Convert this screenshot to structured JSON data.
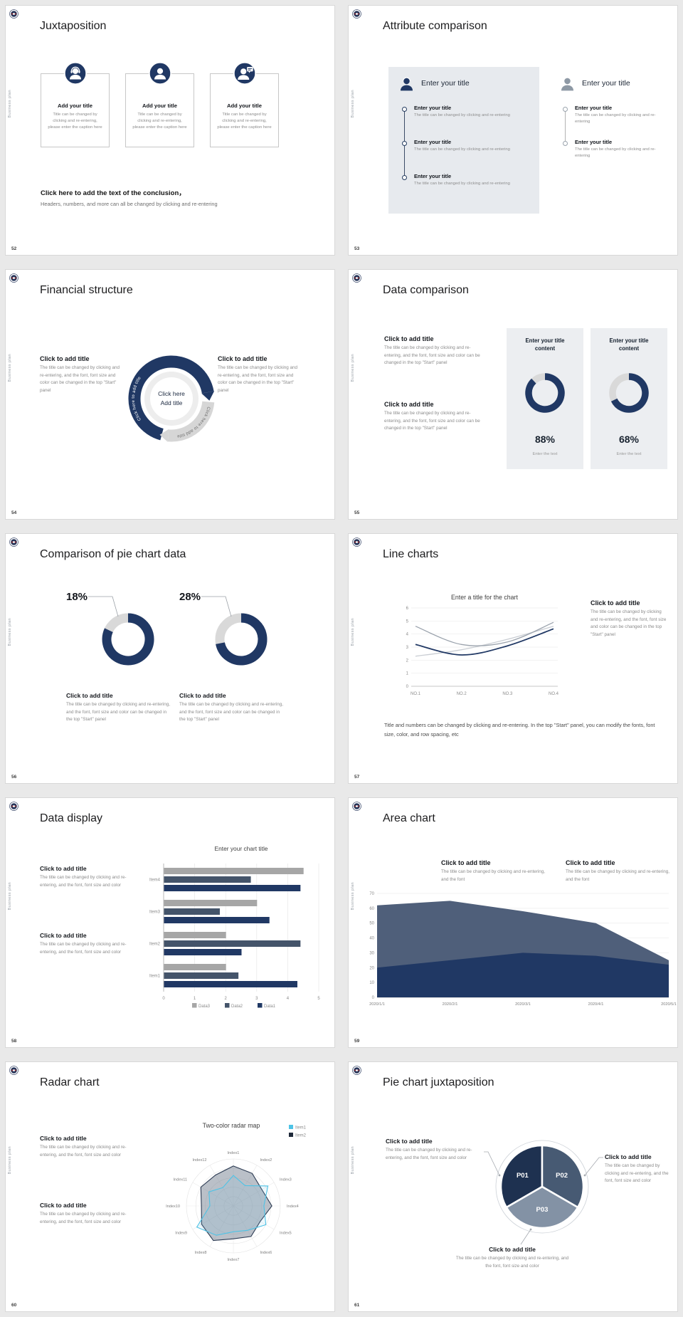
{
  "page": {
    "background": "#e9e9e9"
  },
  "branding": {
    "sidebar_text": "Business plan",
    "logo": "school-emblem-logo"
  },
  "colors": {
    "navy": "#203864",
    "slate": "#44546a",
    "blue_gray": "#8496b0",
    "light_gray": "#d9d9d9",
    "mid_gray": "#a6a6a6",
    "panel_gray": "#e7eaee",
    "cyan": "#4ec3e6",
    "area_upper": "#4f5f7a"
  },
  "slides": {
    "s52": {
      "number": "52",
      "title": "Juxtaposition",
      "cards": [
        {
          "icon": "support-agent-icon",
          "title": "Add your title",
          "caption": "Title can be changed by clicking and re-entering, please enter the caption here"
        },
        {
          "icon": "person-icon",
          "title": "Add your title",
          "caption": "Title can be changed by clicking and re-entering, please enter the caption here"
        },
        {
          "icon": "person-chat-icon",
          "title": "Add your title",
          "caption": "Title can be changed by clicking and re-entering, please enter the caption here"
        }
      ],
      "conclusion_title": "Click here to add the text of the conclusion，",
      "conclusion_text": "Headers, numbers, and more can all be changed by clicking and re-entering"
    },
    "s53": {
      "number": "53",
      "title": "Attribute comparison",
      "panels": [
        {
          "heading": "Enter your title",
          "items": [
            {
              "title": "Enter your title",
              "caption": "The title can be changed by clicking and re-entering"
            },
            {
              "title": "Enter your title",
              "caption": "The title can be changed by clicking and re-entering"
            },
            {
              "title": "Enter your title",
              "caption": "The title can be changed by clicking and re-entering"
            }
          ]
        },
        {
          "heading": "Enter your title",
          "items": [
            {
              "title": "Enter your title",
              "caption": "The title can be changed by clicking and re-entering"
            },
            {
              "title": "Enter your title",
              "caption": "The title can be changed by clicking and re-entering"
            }
          ]
        }
      ]
    },
    "s54": {
      "number": "54",
      "title": "Financial structure",
      "left_block": {
        "title": "Click to add title",
        "text": "The title can be changed by clicking and re-entering, and the font, font size and color can be changed in the top \"Start\" panel"
      },
      "right_block": {
        "title": "Click to add title",
        "text": "The title can be changed by clicking and re-entering, and the font, font size and color can be changed in the top \"Start\" panel"
      },
      "center": {
        "line1": "Click here",
        "line2": "Add title"
      },
      "arc_labels": {
        "dark": "Click here to add title",
        "gray": "Click here to add title"
      }
    },
    "s55": {
      "number": "55",
      "title": "Data comparison",
      "blocks": [
        {
          "title": "Click to add title",
          "text": "The title can be changed by clicking and re-entering, and the font, font size and color can be changed in the top \"Start\" panel"
        },
        {
          "title": "Click to add title",
          "text": "The title can be changed by clicking and re-entering, and the font, font size and color can be changed in the top \"Start\" panel"
        }
      ],
      "cards": [
        {
          "heading": "Enter your title content",
          "percent": "88%",
          "dark_pct": 88,
          "caption": "Enter the text"
        },
        {
          "heading": "Enter your title content",
          "percent": "68%",
          "dark_pct": 68,
          "caption": "Enter the text"
        }
      ]
    },
    "s56": {
      "number": "56",
      "title": "Comparison of pie chart data",
      "donuts": [
        {
          "label": "18%",
          "gray_pct": 18,
          "block_title": "Click to add title",
          "block_text": "The title can be changed by clicking and re-entering, and the font, font size and color can be changed in the top \"Start\" panel"
        },
        {
          "label": "28%",
          "gray_pct": 28,
          "block_title": "Click to add title",
          "block_text": "The title can be changed by clicking and re-entering, and the font, font size and color can be changed in the top \"Start\" panel"
        }
      ]
    },
    "s57": {
      "number": "57",
      "title": "Line charts",
      "chart": {
        "type": "line",
        "title": "Enter a title for the chart",
        "x_labels": [
          "NO.1",
          "NO.2",
          "NO.3",
          "NO.4"
        ],
        "y_ticks": [
          0,
          1,
          2,
          3,
          4,
          5,
          6
        ],
        "ylim": [
          0,
          6
        ],
        "series": [
          {
            "name": "series-dark",
            "color": "#203864",
            "values": [
              3.2,
              2.4,
              3.1,
              4.4
            ]
          },
          {
            "name": "series-gray",
            "color": "#9aa2ac",
            "values": [
              4.6,
              3.2,
              3.4,
              4.9
            ]
          },
          {
            "name": "series-light",
            "color": "#c9cdd3",
            "values": [
              2.3,
              2.8,
              3.6,
              4.6
            ]
          }
        ]
      },
      "side_block": {
        "title": "Click to add title",
        "text": "The title can be changed by clicking and re-entering, and the font, font size and color can be changed in the top \"Start\" panel"
      },
      "footer": "Title and numbers can be changed by clicking and re-entering. In the top \"Start\" panel, you can modify the fonts, font size, color, and row spacing, etc"
    },
    "s58": {
      "number": "58",
      "title": "Data display",
      "blocks": [
        {
          "title": "Click to add title",
          "text": "The title can be changed by clicking and re-entering, and the font, font size and color"
        },
        {
          "title": "Click to add title",
          "text": "The title can be changed by clicking and re-entering, and the font, font size and color"
        }
      ],
      "chart": {
        "type": "bar",
        "title": "Enter your chart title",
        "categories": [
          "Item1",
          "Item2",
          "Item3",
          "Item4"
        ],
        "x_ticks": [
          0,
          1,
          2,
          3,
          4,
          5
        ],
        "xlim": [
          0,
          5
        ],
        "legend_position": "bottom",
        "series": [
          {
            "name": "Data3",
            "color": "#a6a6a6",
            "values": [
              2,
              2,
              3,
              4.5
            ]
          },
          {
            "name": "Data2",
            "color": "#44546a",
            "values": [
              2.4,
              4.4,
              1.8,
              2.8
            ]
          },
          {
            "name": "Data1",
            "color": "#203864",
            "values": [
              4.3,
              2.5,
              3.4,
              4.4
            ]
          }
        ]
      }
    },
    "s59": {
      "number": "59",
      "title": "Area chart",
      "blocks": [
        {
          "title": "Click to add title",
          "text": "The title can be changed by clicking and re-entering, and the font"
        },
        {
          "title": "Click to add title",
          "text": "The title can be changed by clicking and re-entering, and the font"
        }
      ],
      "chart": {
        "type": "area",
        "x_labels": [
          "2020/1/1",
          "2020/2/1",
          "2020/3/1",
          "2020/4/1",
          "2020/5/1"
        ],
        "y_ticks": [
          0,
          10,
          20,
          30,
          40,
          50,
          60,
          70
        ],
        "ymax": 70,
        "series": [
          {
            "name": "upper-area",
            "color": "#4f5f7a",
            "values": [
              62,
              65,
              58,
              50,
              25
            ]
          },
          {
            "name": "lower-area",
            "color": "#203864",
            "values": [
              20,
              25,
              30,
              28,
              22
            ]
          }
        ]
      }
    },
    "s60": {
      "number": "60",
      "title": "Radar chart",
      "blocks": [
        {
          "title": "Click to add title",
          "text": "The title can be changed by clicking and re-entering, and the font, font size and color"
        },
        {
          "title": "Click to add title",
          "text": "The title can be changed by clicking and re-entering, and the font, font size and color"
        }
      ],
      "chart": {
        "type": "radar",
        "title": "Two-color radar map",
        "axes": [
          "Index1",
          "Index2",
          "Index3",
          "Index4",
          "Index5",
          "Index6",
          "Index7",
          "Index8",
          "Index9",
          "Index10",
          "Index11",
          "Index12"
        ],
        "legend": [
          {
            "name": "Item1",
            "color": "#4ec3e6"
          },
          {
            "name": "Item2",
            "color": "#1f2a3a"
          }
        ],
        "series": [
          {
            "name": "Item2",
            "color": "#2b3a52",
            "fill": "rgba(130,140,155,0.55)",
            "values": [
              0.85,
              0.8,
              0.7,
              0.82,
              0.66,
              0.75,
              0.7,
              0.85,
              0.78,
              0.68,
              0.8,
              0.76
            ]
          },
          {
            "name": "Item1",
            "color": "#4ec3e6",
            "fill": "rgba(110,200,235,0.12)",
            "values": [
              0.65,
              0.5,
              0.85,
              0.65,
              0.8,
              0.6,
              0.55,
              0.72,
              0.9,
              0.5,
              0.6,
              0.45
            ]
          }
        ]
      }
    },
    "s61": {
      "number": "61",
      "title": "Pie chart juxtaposition",
      "pie": {
        "type": "pie",
        "slices": [
          {
            "label": "P01",
            "color": "#1e3150",
            "start": 240,
            "end": 360
          },
          {
            "label": "P02",
            "color": "#475a73",
            "start": 0,
            "end": 120
          },
          {
            "label": "P03",
            "color": "#8392a5",
            "start": 120,
            "end": 240
          }
        ]
      },
      "blocks": [
        {
          "position": "left",
          "title": "Click to add title",
          "text": "The title can be changed by clicking and re-entering, and the font, font size and color"
        },
        {
          "position": "right",
          "title": "Click to add title",
          "text": "The title can be changed by clicking and re-entering, and the font, font size and color"
        },
        {
          "position": "bottom",
          "title": "Click to add title",
          "text": "The title can be changed by clicking and re-entering, and the font, font size and color"
        }
      ]
    }
  }
}
